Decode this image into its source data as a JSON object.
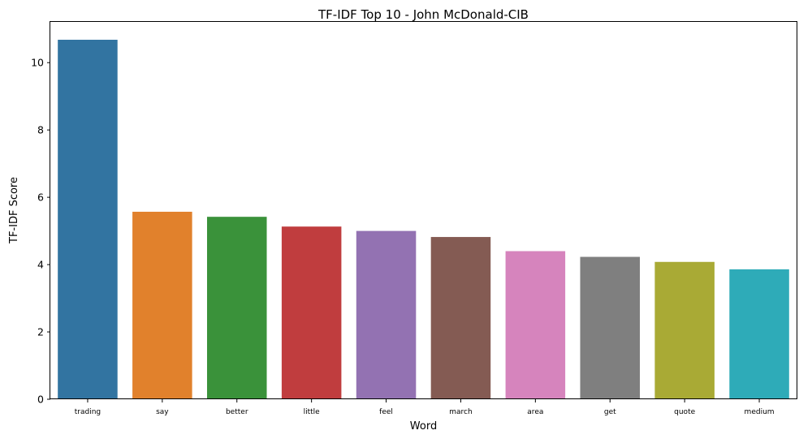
{
  "chart_data": {
    "type": "bar",
    "title": "TF-IDF Top 10 - John McDonald-CIB",
    "xlabel": "Word",
    "ylabel": "TF-IDF Score",
    "categories": [
      "trading",
      "say",
      "better",
      "little",
      "feel",
      "march",
      "area",
      "get",
      "quote",
      "medium"
    ],
    "values": [
      10.68,
      5.57,
      5.42,
      5.13,
      5.0,
      4.82,
      4.4,
      4.23,
      4.08,
      3.86
    ],
    "colors": [
      "#3274a1",
      "#e1812c",
      "#3a923a",
      "#c03d3e",
      "#9372b2",
      "#845b53",
      "#d684bd",
      "#7f7f7f",
      "#a9aa35",
      "#2eabb8"
    ],
    "ylim": [
      0,
      11.21
    ],
    "yticks": [
      0,
      2,
      4,
      6,
      8,
      10
    ],
    "grid": false,
    "legend": "none"
  }
}
